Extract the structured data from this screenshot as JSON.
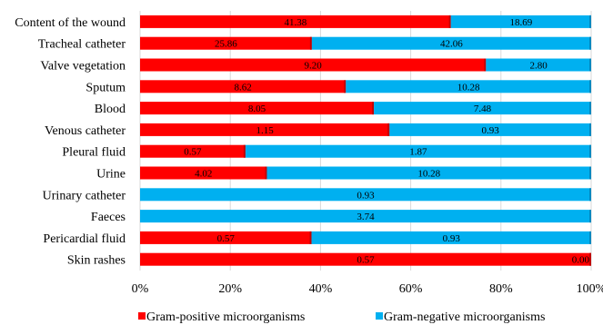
{
  "chart_data": {
    "type": "bar",
    "orientation": "horizontal",
    "stacked": "percent",
    "categories": [
      "Content of the wound",
      "Tracheal catheter",
      "Valve vegetation",
      "Sputum",
      "Blood",
      "Venous catheter",
      "Pleural fluid",
      "Urine",
      "Urinary catheter",
      "Faeces",
      "Pericardial fluid",
      "Skin rashes"
    ],
    "series": [
      {
        "name": "Gram-positive microorganisms",
        "color": "#ff0000",
        "values": [
          41.38,
          25.86,
          9.2,
          8.62,
          8.05,
          1.15,
          0.57,
          4.02,
          0.0,
          0.0,
          0.57,
          0.57
        ],
        "labels": [
          "41.38",
          "25.86",
          "9.20",
          "8.62",
          "8.05",
          "1.15",
          "0.57",
          "4.02",
          "0.00",
          "0.00",
          "0.57",
          "0.57"
        ]
      },
      {
        "name": "Gram-negative microorganisms",
        "color": "#00b0f0",
        "values": [
          18.69,
          42.06,
          2.8,
          10.28,
          7.48,
          0.93,
          1.87,
          10.28,
          0.93,
          3.74,
          0.93,
          0.0
        ],
        "labels": [
          "18.69",
          "42.06",
          "2.80",
          "10.28",
          "7.48",
          "0.93",
          "1.87",
          "10.28",
          "0.93",
          "3.74",
          "0.93",
          "0.00"
        ]
      }
    ],
    "x_ticks": [
      "0%",
      "20%",
      "40%",
      "60%",
      "80%",
      "100%"
    ],
    "xlim": [
      0,
      100
    ],
    "grid": true,
    "legend_position": "bottom",
    "title": "",
    "xlabel": "",
    "ylabel": ""
  }
}
